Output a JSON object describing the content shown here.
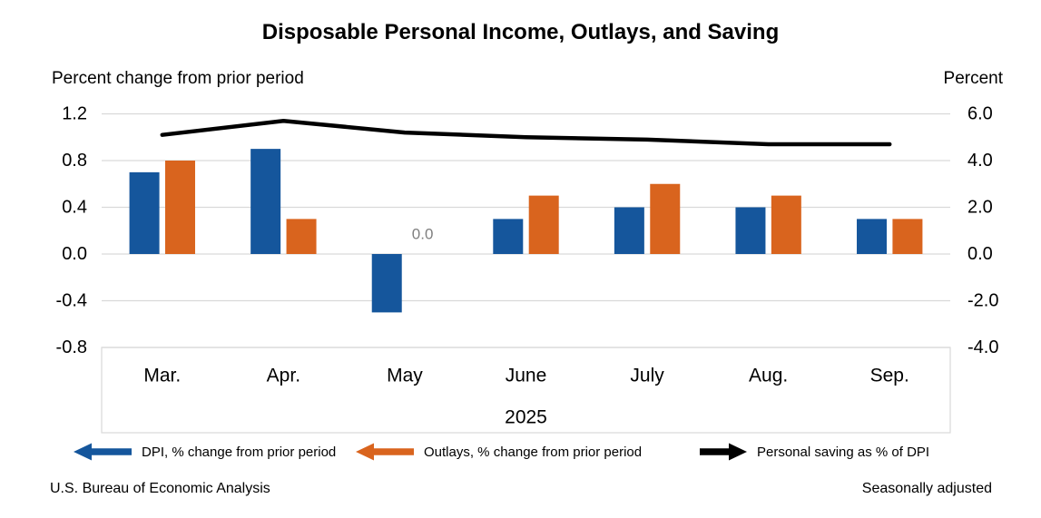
{
  "title": "Disposable Personal Income, Outlays, and Saving",
  "chart_data": {
    "type": "bar+line",
    "categories": [
      "Mar.",
      "Apr.",
      "May",
      "June",
      "July",
      "Aug.",
      "Sep."
    ],
    "year": "2025",
    "series": [
      {
        "name": "DPI, % change from prior period",
        "type": "bar",
        "axis": "left",
        "color": "#15569c",
        "values": [
          0.7,
          0.9,
          -0.5,
          0.3,
          0.4,
          0.4,
          0.3
        ]
      },
      {
        "name": "Outlays, % change from prior period",
        "type": "bar",
        "axis": "left",
        "color": "#d9641e",
        "values": [
          0.8,
          0.3,
          0.0,
          0.5,
          0.6,
          0.5,
          0.3
        ]
      },
      {
        "name": "Personal saving as % of DPI",
        "type": "line",
        "axis": "right",
        "color": "#000000",
        "values": [
          5.1,
          5.7,
          5.2,
          5.0,
          4.9,
          4.7,
          4.7
        ]
      }
    ],
    "annotations": [
      {
        "text": "0.0",
        "category": "May",
        "series": "Outlays, % change from prior period",
        "color": "#7f7f7f"
      }
    ],
    "left_axis": {
      "title": "Percent change from prior period",
      "ticks": [
        "1.2",
        "0.8",
        "0.4",
        "0.0",
        "-0.4",
        "-0.8"
      ],
      "ylim": [
        -0.8,
        1.2
      ]
    },
    "right_axis": {
      "title": "Percent",
      "ticks": [
        "6.0",
        "4.0",
        "2.0",
        "0.0",
        "-2.0",
        "-4.0"
      ],
      "ylim": [
        -4.0,
        6.0
      ]
    },
    "grid": true,
    "grid_color": "#d9d9d9",
    "legend_position": "bottom"
  },
  "legend": [
    {
      "label": "DPI, % change from prior period",
      "color": "#15569c",
      "arrow_direction": "left"
    },
    {
      "label": "Outlays, % change from prior period",
      "color": "#d9641e",
      "arrow_direction": "left"
    },
    {
      "label": "Personal saving as % of DPI",
      "color": "#000000",
      "arrow_direction": "right"
    }
  ],
  "footer": {
    "source": "U.S. Bureau of Economic Analysis",
    "note": "Seasonally adjusted"
  }
}
